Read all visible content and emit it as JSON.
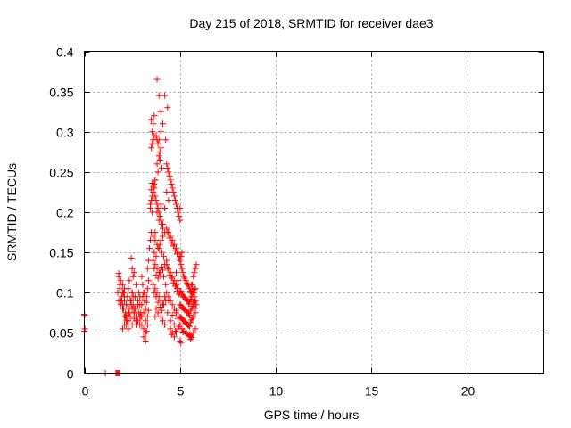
{
  "chart_data": {
    "type": "scatter",
    "title": "Day 215 of 2018, SRMTID for receiver dae3",
    "xlabel": "GPS time / hours",
    "ylabel": "SRMTID / TECUs",
    "xlim": [
      0,
      24
    ],
    "ylim": [
      0,
      0.4
    ],
    "xticks": [
      0,
      5,
      10,
      15,
      20
    ],
    "xtick_labels": [
      "0",
      "5",
      "10",
      "15",
      "20"
    ],
    "yticks": [
      0,
      0.05,
      0.1,
      0.15,
      0.2,
      0.25,
      0.3,
      0.35,
      0.4
    ],
    "ytick_labels": [
      "0",
      "0.05",
      "0.1",
      "0.15",
      "0.2",
      "0.25",
      "0.3",
      "0.35",
      "0.4"
    ],
    "grid": true,
    "marker": "+",
    "marker_color": "#ff0000",
    "series": [
      {
        "name": "dae3",
        "x": [
          0.0,
          0.0,
          0.02,
          0.03,
          1.1,
          1.65,
          1.7,
          1.75,
          1.8,
          1.85,
          1.75,
          1.8,
          1.85,
          1.9,
          1.95,
          2.0,
          2.05,
          2.1,
          2.15,
          2.2,
          2.25,
          2.3,
          2.35,
          2.4,
          2.45,
          2.5,
          2.55,
          2.6,
          2.65,
          2.7,
          2.75,
          2.8,
          2.85,
          2.9,
          2.95,
          1.8,
          1.9,
          2.0,
          2.1,
          2.2,
          2.3,
          2.4,
          2.5,
          2.6,
          2.7,
          2.8,
          2.9,
          1.85,
          1.95,
          2.05,
          2.15,
          2.25,
          2.35,
          2.45,
          2.55,
          2.65,
          2.75,
          2.85,
          1.9,
          2.0,
          2.1,
          2.2,
          2.3,
          2.4,
          2.5,
          2.6,
          2.7,
          2.8,
          2.9,
          2.95,
          2.0,
          2.1,
          2.2,
          2.3,
          2.5,
          2.7,
          2.9,
          2.4,
          2.6,
          2.2,
          2.45,
          2.5,
          2.55,
          2.35,
          2.6,
          2.0,
          2.1,
          1.8,
          3.0,
          3.05,
          3.1,
          3.15,
          3.2,
          3.25,
          3.3,
          3.35,
          3.0,
          3.1,
          3.2,
          3.3,
          3.05,
          3.15,
          3.25,
          3.35,
          3.0,
          3.1,
          3.2,
          3.3,
          3.1,
          3.2,
          3.0,
          3.25,
          3.3,
          3.35,
          3.4,
          3.45,
          3.5,
          3.55,
          3.6,
          3.65,
          3.7,
          3.45,
          3.5,
          3.55,
          3.6,
          3.65,
          3.5,
          3.6,
          3.55,
          3.45,
          3.7,
          3.5,
          3.55,
          3.6,
          3.65,
          3.55,
          3.6,
          3.5,
          3.65,
          3.75,
          3.8,
          3.85,
          3.9,
          3.95,
          4.0,
          3.8,
          3.9,
          4.0,
          3.85,
          3.95,
          4.05,
          3.7,
          3.75,
          3.8,
          3.85,
          3.9,
          3.95,
          4.0,
          4.05,
          4.1,
          3.7,
          3.8,
          3.9,
          4.0,
          4.1,
          3.6,
          3.7,
          3.8,
          3.9,
          4.0,
          4.1,
          4.2,
          3.65,
          3.75,
          3.85,
          3.95,
          4.05,
          4.15,
          3.6,
          3.7,
          3.8,
          3.9,
          4.0,
          4.1,
          4.2,
          4.3,
          3.65,
          3.75,
          3.85,
          3.95,
          4.05,
          4.15,
          4.25,
          3.6,
          3.7,
          3.8,
          3.9,
          4.0,
          4.1,
          4.2,
          4.3,
          4.4,
          3.65,
          3.75,
          3.85,
          3.95,
          4.05,
          4.15,
          4.25,
          4.35,
          3.75,
          3.85,
          4.0,
          4.2,
          4.1,
          3.7,
          3.8,
          3.9,
          4.2,
          4.35,
          4.0,
          4.1,
          4.25,
          3.95,
          4.3,
          4.35,
          4.4,
          4.45,
          4.5,
          4.55,
          4.6,
          4.65,
          4.7,
          4.75,
          4.8,
          4.85,
          4.9,
          4.95,
          5.0,
          4.3,
          4.4,
          4.5,
          4.6,
          4.7,
          4.8,
          4.9,
          5.0,
          4.35,
          4.45,
          4.55,
          4.65,
          4.75,
          4.85,
          4.95,
          4.3,
          4.4,
          4.5,
          4.6,
          4.7,
          4.8,
          4.9,
          5.0,
          4.35,
          4.45,
          4.55,
          4.65,
          4.75,
          4.85,
          4.95,
          4.4,
          4.5,
          4.6,
          4.7,
          4.8,
          4.9,
          4.5,
          4.7,
          4.9,
          4.6,
          4.8,
          4.5,
          4.6,
          4.7,
          4.8,
          4.9,
          5.0,
          4.55,
          4.75,
          4.95,
          4.3,
          4.4,
          4.2,
          4.8,
          4.9,
          4.85,
          5.0,
          5.05,
          5.1,
          5.15,
          5.2,
          5.25,
          5.3,
          5.35,
          5.4,
          5.45,
          5.5,
          5.55,
          5.6,
          5.65,
          5.7,
          5.75,
          5.8,
          5.85,
          5.0,
          5.1,
          5.2,
          5.3,
          5.4,
          5.5,
          5.6,
          5.7,
          5.8,
          5.05,
          5.15,
          5.25,
          5.35,
          5.45,
          5.55,
          5.65,
          5.75,
          5.0,
          5.1,
          5.2,
          5.3,
          5.4,
          5.5,
          5.6,
          5.7,
          5.8,
          5.05,
          5.15,
          5.25,
          5.35,
          5.45,
          5.55,
          5.65,
          5.75,
          5.0,
          5.1,
          5.2,
          5.3,
          5.4,
          5.5,
          5.6,
          5.7,
          5.8,
          5.05,
          5.15,
          5.25,
          5.35,
          5.45,
          5.55,
          5.65,
          5.1,
          5.2,
          5.3,
          5.4,
          5.5,
          5.6,
          5.7,
          5.8,
          5.15,
          5.35,
          5.55,
          5.0,
          5.05,
          5.1,
          5.5,
          5.55,
          5.6,
          5.0,
          5.05,
          5.6,
          5.65,
          5.7,
          5.75,
          5.8,
          5.85,
          5.6,
          5.7,
          5.8
        ],
        "y": [
          0.073,
          0.052,
          0.072,
          0.055,
          0.0,
          0.0,
          0.0,
          0.0,
          0.0,
          0.0,
          0.1,
          0.09,
          0.11,
          0.085,
          0.095,
          0.08,
          0.1,
          0.09,
          0.075,
          0.085,
          0.095,
          0.105,
          0.08,
          0.07,
          0.09,
          0.1,
          0.085,
          0.075,
          0.095,
          0.11,
          0.08,
          0.09,
          0.1,
          0.085,
          0.07,
          0.12,
          0.115,
          0.1,
          0.095,
          0.085,
          0.075,
          0.09,
          0.1,
          0.08,
          0.07,
          0.085,
          0.095,
          0.105,
          0.09,
          0.08,
          0.07,
          0.065,
          0.075,
          0.085,
          0.095,
          0.08,
          0.065,
          0.075,
          0.09,
          0.085,
          0.07,
          0.06,
          0.065,
          0.07,
          0.08,
          0.075,
          0.06,
          0.065,
          0.07,
          0.075,
          0.055,
          0.06,
          0.065,
          0.055,
          0.06,
          0.065,
          0.06,
          0.07,
          0.068,
          0.072,
          0.143,
          0.13,
          0.12,
          0.115,
          0.125,
          0.11,
          0.105,
          0.124,
          0.12,
          0.11,
          0.1,
          0.09,
          0.08,
          0.095,
          0.105,
          0.115,
          0.085,
          0.075,
          0.065,
          0.07,
          0.095,
          0.1,
          0.088,
          0.078,
          0.06,
          0.055,
          0.05,
          0.06,
          0.045,
          0.04,
          0.07,
          0.052,
          0.13,
          0.14,
          0.155,
          0.165,
          0.175,
          0.2,
          0.22,
          0.235,
          0.24,
          0.21,
          0.215,
          0.22,
          0.225,
          0.23,
          0.228,
          0.232,
          0.236,
          0.205,
          0.24,
          0.28,
          0.285,
          0.29,
          0.295,
          0.3,
          0.31,
          0.315,
          0.32,
          0.295,
          0.29,
          0.285,
          0.29,
          0.275,
          0.3,
          0.26,
          0.27,
          0.28,
          0.25,
          0.265,
          0.255,
          0.22,
          0.215,
          0.21,
          0.205,
          0.2,
          0.195,
          0.19,
          0.185,
          0.18,
          0.175,
          0.2,
          0.19,
          0.21,
          0.185,
          0.17,
          0.165,
          0.16,
          0.155,
          0.165,
          0.17,
          0.175,
          0.15,
          0.145,
          0.155,
          0.16,
          0.15,
          0.145,
          0.14,
          0.135,
          0.13,
          0.125,
          0.12,
          0.128,
          0.135,
          0.14,
          0.13,
          0.122,
          0.118,
          0.125,
          0.132,
          0.12,
          0.11,
          0.11,
          0.105,
          0.1,
          0.095,
          0.09,
          0.085,
          0.095,
          0.1,
          0.09,
          0.1,
          0.095,
          0.088,
          0.082,
          0.078,
          0.085,
          0.09,
          0.075,
          0.08,
          0.075,
          0.07,
          0.06,
          0.065,
          0.07,
          0.365,
          0.345,
          0.345,
          0.33,
          0.325,
          0.31,
          0.29,
          0.265,
          0.26,
          0.255,
          0.25,
          0.245,
          0.24,
          0.235,
          0.23,
          0.225,
          0.22,
          0.215,
          0.21,
          0.205,
          0.2,
          0.195,
          0.19,
          0.18,
          0.175,
          0.17,
          0.165,
          0.16,
          0.155,
          0.15,
          0.145,
          0.175,
          0.168,
          0.162,
          0.158,
          0.152,
          0.148,
          0.142,
          0.135,
          0.13,
          0.125,
          0.12,
          0.115,
          0.11,
          0.105,
          0.1,
          0.13,
          0.122,
          0.118,
          0.112,
          0.108,
          0.102,
          0.098,
          0.095,
          0.09,
          0.085,
          0.08,
          0.075,
          0.07,
          0.065,
          0.06,
          0.068,
          0.072,
          0.078,
          0.055,
          0.05,
          0.045,
          0.05,
          0.055,
          0.06,
          0.048,
          0.052,
          0.058,
          0.225,
          0.215,
          0.205,
          0.125,
          0.115,
          0.105,
          0.14,
          0.135,
          0.13,
          0.125,
          0.12,
          0.118,
          0.115,
          0.112,
          0.11,
          0.108,
          0.105,
          0.102,
          0.1,
          0.11,
          0.12,
          0.125,
          0.13,
          0.135,
          0.1,
          0.098,
          0.095,
          0.092,
          0.09,
          0.088,
          0.095,
          0.1,
          0.105,
          0.102,
          0.096,
          0.094,
          0.09,
          0.086,
          0.092,
          0.098,
          0.104,
          0.085,
          0.082,
          0.08,
          0.078,
          0.075,
          0.072,
          0.08,
          0.085,
          0.09,
          0.084,
          0.081,
          0.079,
          0.076,
          0.074,
          0.078,
          0.083,
          0.088,
          0.07,
          0.068,
          0.065,
          0.062,
          0.06,
          0.058,
          0.066,
          0.07,
          0.075,
          0.069,
          0.066,
          0.064,
          0.061,
          0.059,
          0.063,
          0.068,
          0.055,
          0.052,
          0.05,
          0.048,
          0.046,
          0.045,
          0.05,
          0.055,
          0.051,
          0.049,
          0.047,
          0.205,
          0.145,
          0.15,
          0.048,
          0.042,
          0.044,
          0.04,
          0.038,
          0.11,
          0.105,
          0.1,
          0.095,
          0.09,
          0.085,
          0.092,
          0.088,
          0.08
        ]
      }
    ]
  }
}
